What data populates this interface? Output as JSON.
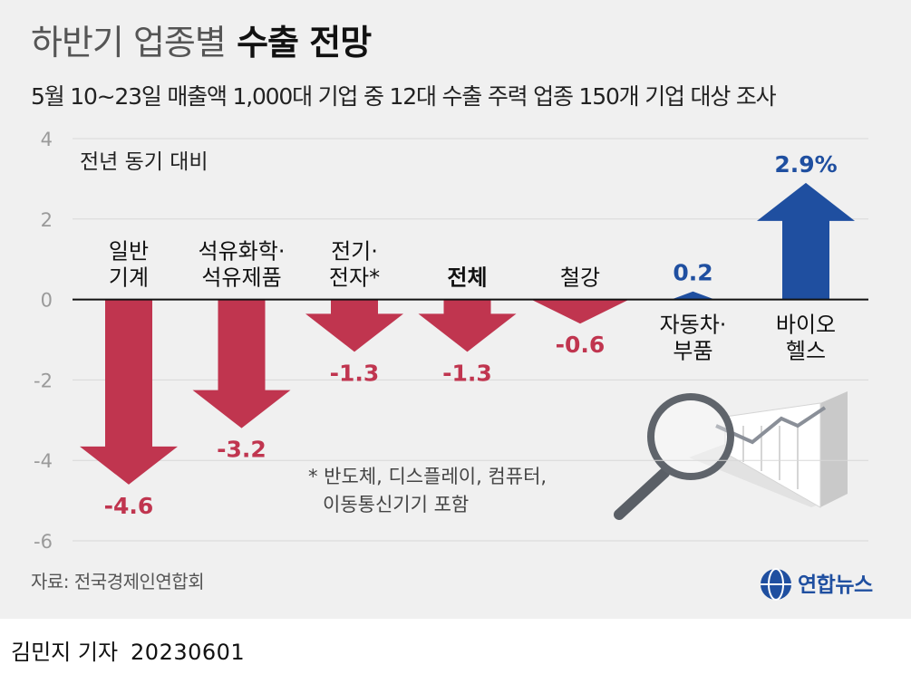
{
  "header": {
    "title_light": "하반기 업종별",
    "title_bold": "수출 전망",
    "subtitle": "5월 10~23일 매출액 1,000대 기업 중 12대 수출 주력 업종 150개 기업 대상 조사"
  },
  "footer": {
    "source": "자료: 전국경제인연합회",
    "logo_text": "연합뉴스",
    "reporter": "김민지 기자",
    "date": "20230601"
  },
  "footnote": [
    "* 반도체, 디스플레이, 컴퓨터,",
    "이동통신기기 포함"
  ],
  "colors": {
    "negative": "#c0354f",
    "positive": "#1f4fa0",
    "gridline": "#d8d8d8",
    "baseline": "#111111",
    "tick": "#9a9a9a",
    "panel": "#f0f0f0"
  },
  "chart_data": {
    "type": "bar",
    "ylabel": "전년 동기 대비",
    "ylim": [
      -6,
      4
    ],
    "yticks": [
      "4",
      "2",
      "0",
      "-2",
      "-4",
      "-6"
    ],
    "grid": true,
    "categories": [
      [
        "일반",
        "기계"
      ],
      [
        "석유화학·",
        "석유제품"
      ],
      [
        "전기·",
        "전자*"
      ],
      [
        "전체"
      ],
      [
        "철강"
      ],
      [
        "자동차·",
        "부품"
      ],
      [
        "바이오",
        "헬스"
      ]
    ],
    "values": [
      -4.6,
      -3.2,
      -1.3,
      -1.3,
      -0.6,
      0.2,
      2.9
    ],
    "value_labels": [
      "-4.6",
      "-3.2",
      "-1.3",
      "-1.3",
      "-0.6",
      "0.2",
      "2.9%"
    ],
    "bold_category": 3
  }
}
